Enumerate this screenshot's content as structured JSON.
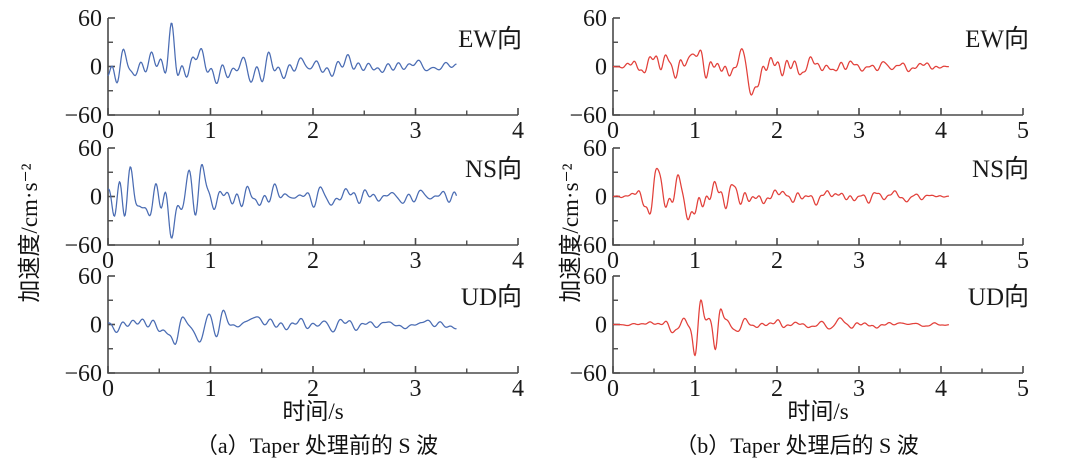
{
  "figure": {
    "background": "#ffffff"
  },
  "panels": [
    {
      "id": "a",
      "caption": "（a）Taper 处理前的 S 波",
      "xlabel": "时间/s",
      "ylabel": "加速度/cm·s⁻²"
    },
    {
      "id": "b",
      "caption": "（b）Taper 处理后的 S 波",
      "xlabel": "时间/s",
      "ylabel": "加速度/cm·s⁻²"
    }
  ],
  "chart_data": [
    {
      "id": "a-ew",
      "panel": "a",
      "type": "line",
      "series_label": "EW向",
      "color": "#4a6cb3",
      "x_range": [
        0,
        4
      ],
      "y_range": [
        -60,
        60
      ],
      "x_minor_step": 0.5,
      "xtick_labels": [
        "0",
        "1",
        "2",
        "3",
        "4"
      ],
      "ytick_values": [
        60,
        0,
        -60
      ],
      "ytick_labels": [
        "60",
        "0",
        "−60"
      ],
      "ytick_minor": [
        30,
        -30
      ],
      "t_end": 3.4,
      "seed": 3,
      "envelope": [
        [
          0,
          26
        ],
        [
          0.15,
          30
        ],
        [
          0.4,
          24
        ],
        [
          0.62,
          30
        ],
        [
          0.8,
          24
        ],
        [
          1.1,
          26
        ],
        [
          1.45,
          28
        ],
        [
          1.7,
          18
        ],
        [
          2.0,
          14
        ],
        [
          2.3,
          12
        ],
        [
          2.7,
          9
        ],
        [
          3.1,
          8
        ],
        [
          3.4,
          7
        ]
      ],
      "spikes": [
        [
          0.62,
          34,
          0.035
        ],
        [
          1.4,
          -22,
          0.05
        ],
        [
          0.12,
          12,
          0.04
        ]
      ]
    },
    {
      "id": "a-ns",
      "panel": "a",
      "type": "line",
      "series_label": "NS向",
      "color": "#4a6cb3",
      "x_range": [
        0,
        4
      ],
      "y_range": [
        -60,
        60
      ],
      "x_minor_step": 0.5,
      "xtick_labels": [
        "0",
        "1",
        "2",
        "3",
        "4"
      ],
      "ytick_values": [
        60,
        0,
        -60
      ],
      "ytick_labels": [
        "60",
        "0",
        "−60"
      ],
      "ytick_minor": [
        30,
        -30
      ],
      "t_end": 3.4,
      "seed": 7,
      "envelope": [
        [
          0,
          30
        ],
        [
          0.2,
          36
        ],
        [
          0.45,
          30
        ],
        [
          0.72,
          38
        ],
        [
          0.95,
          32
        ],
        [
          1.2,
          24
        ],
        [
          1.5,
          18
        ],
        [
          1.9,
          15
        ],
        [
          2.4,
          13
        ],
        [
          2.9,
          11
        ],
        [
          3.4,
          9
        ]
      ],
      "spikes": [
        [
          0.65,
          -40,
          0.04
        ],
        [
          0.8,
          28,
          0.035
        ],
        [
          0.33,
          -16,
          0.05
        ]
      ]
    },
    {
      "id": "a-ud",
      "panel": "a",
      "type": "line",
      "series_label": "UD向",
      "color": "#4a6cb3",
      "x_range": [
        0,
        4
      ],
      "y_range": [
        -60,
        60
      ],
      "x_minor_step": 0.5,
      "xtick_labels": [
        "0",
        "1",
        "2",
        "3",
        "4"
      ],
      "ytick_values": [
        60,
        0,
        -60
      ],
      "ytick_labels": [
        "60",
        "0",
        "−60"
      ],
      "ytick_minor": [
        30,
        -30
      ],
      "t_end": 3.4,
      "seed": 13,
      "envelope": [
        [
          0,
          9
        ],
        [
          0.25,
          12
        ],
        [
          0.5,
          15
        ],
        [
          0.75,
          14
        ],
        [
          0.95,
          16
        ],
        [
          1.2,
          12
        ],
        [
          1.5,
          11
        ],
        [
          2.0,
          10
        ],
        [
          2.5,
          8
        ],
        [
          3.0,
          7
        ],
        [
          3.4,
          6
        ]
      ],
      "spikes": [
        [
          0.66,
          -30,
          0.03
        ],
        [
          0.9,
          -34,
          0.03
        ],
        [
          0.97,
          26,
          0.03
        ],
        [
          1.45,
          14,
          0.04
        ]
      ]
    },
    {
      "id": "b-ew",
      "panel": "b",
      "type": "line",
      "series_label": "EW向",
      "color": "#e2403a",
      "x_range": [
        0,
        5
      ],
      "y_range": [
        -60,
        60
      ],
      "x_minor_step": 0.5,
      "xtick_labels": [
        "0",
        "1",
        "2",
        "3",
        "4",
        "5"
      ],
      "ytick_values": [
        60,
        0,
        -60
      ],
      "ytick_labels": [
        "60",
        "0",
        "−60"
      ],
      "ytick_minor": [
        30,
        -30
      ],
      "t_end": 4.1,
      "seed": 21,
      "envelope": [
        [
          0,
          0
        ],
        [
          0.15,
          3
        ],
        [
          0.35,
          16
        ],
        [
          0.6,
          20
        ],
        [
          0.95,
          26
        ],
        [
          1.25,
          20
        ],
        [
          1.55,
          22
        ],
        [
          1.85,
          18
        ],
        [
          2.2,
          13
        ],
        [
          2.6,
          13
        ],
        [
          3.0,
          9
        ],
        [
          3.5,
          7
        ],
        [
          3.9,
          4
        ],
        [
          4.1,
          1
        ]
      ],
      "spikes": [
        [
          0.95,
          30,
          0.035
        ],
        [
          1.72,
          -26,
          0.05
        ],
        [
          0.48,
          16,
          0.04
        ]
      ]
    },
    {
      "id": "b-ns",
      "panel": "b",
      "type": "line",
      "series_label": "NS向",
      "color": "#e2403a",
      "x_range": [
        0,
        5
      ],
      "y_range": [
        -60,
        60
      ],
      "x_minor_step": 0.5,
      "xtick_labels": [
        "0",
        "1",
        "2",
        "3",
        "4",
        "5"
      ],
      "ytick_values": [
        60,
        0,
        -60
      ],
      "ytick_labels": [
        "60",
        "0",
        "−60"
      ],
      "ytick_minor": [
        30,
        -30
      ],
      "t_end": 4.1,
      "seed": 29,
      "envelope": [
        [
          0,
          0
        ],
        [
          0.2,
          5
        ],
        [
          0.5,
          28
        ],
        [
          0.75,
          24
        ],
        [
          1.05,
          32
        ],
        [
          1.35,
          24
        ],
        [
          1.65,
          18
        ],
        [
          2.0,
          12
        ],
        [
          2.5,
          12
        ],
        [
          3.0,
          10
        ],
        [
          3.5,
          8
        ],
        [
          4.0,
          3
        ],
        [
          4.1,
          1
        ]
      ],
      "spikes": [
        [
          0.98,
          -42,
          0.035
        ],
        [
          1.12,
          26,
          0.03
        ],
        [
          0.55,
          20,
          0.04
        ]
      ]
    },
    {
      "id": "b-ud",
      "panel": "b",
      "type": "line",
      "series_label": "UD向",
      "color": "#e2403a",
      "x_range": [
        0,
        5
      ],
      "y_range": [
        -60,
        60
      ],
      "x_minor_step": 0.5,
      "xtick_labels": [
        "0",
        "1",
        "2",
        "3",
        "4",
        "5"
      ],
      "ytick_values": [
        60,
        0,
        -60
      ],
      "ytick_labels": [
        "60",
        "0",
        "−60"
      ],
      "ytick_minor": [
        30,
        -30
      ],
      "t_end": 4.1,
      "seed": 35,
      "envelope": [
        [
          0,
          0
        ],
        [
          0.3,
          4
        ],
        [
          0.6,
          8
        ],
        [
          0.85,
          13
        ],
        [
          1.1,
          14
        ],
        [
          1.35,
          13
        ],
        [
          1.7,
          10
        ],
        [
          2.0,
          9
        ],
        [
          2.5,
          8
        ],
        [
          3.0,
          6
        ],
        [
          3.5,
          5
        ],
        [
          4.0,
          2
        ],
        [
          4.1,
          0.5
        ]
      ],
      "spikes": [
        [
          1.0,
          -32,
          0.025
        ],
        [
          1.07,
          24,
          0.025
        ],
        [
          1.25,
          -30,
          0.025
        ],
        [
          1.31,
          22,
          0.028
        ]
      ]
    }
  ]
}
